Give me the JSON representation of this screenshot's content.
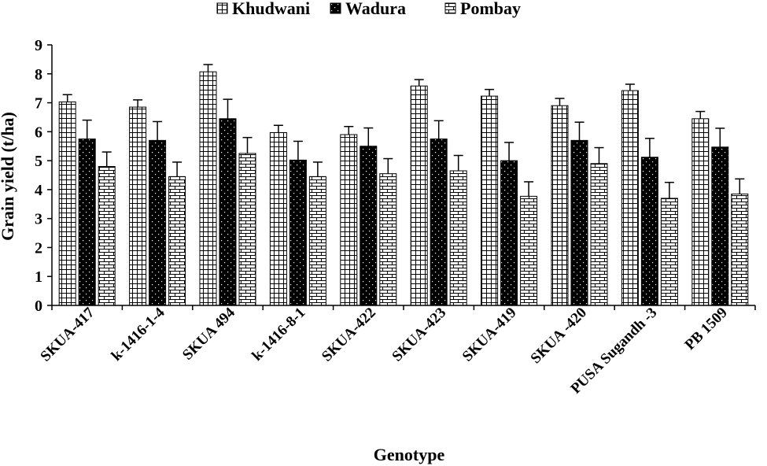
{
  "chart_data": {
    "type": "bar",
    "xlabel": "Genotype",
    "ylabel": "Grain yield (t/ha)",
    "ylim": [
      0,
      9
    ],
    "yticks": [
      0,
      1,
      2,
      3,
      4,
      5,
      6,
      7,
      8,
      9
    ],
    "categories": [
      "SKUA-417",
      "k-1416-1-4",
      "SKUA 494",
      "k-1416-8-1",
      "SKUA-422",
      "SKUA-423",
      "SKUA-419",
      "SKUA -420",
      "PUSA Sugandh -3",
      "PB 1509"
    ],
    "series": [
      {
        "name": "Khudwani",
        "pattern": "grid",
        "values": [
          7.03,
          6.85,
          8.07,
          5.97,
          5.9,
          7.58,
          7.23,
          6.9,
          7.42,
          6.45
        ],
        "errors": [
          0.25,
          0.25,
          0.25,
          0.25,
          0.28,
          0.22,
          0.23,
          0.25,
          0.22,
          0.25
        ]
      },
      {
        "name": "Wadura",
        "pattern": "dots",
        "values": [
          5.75,
          5.7,
          6.45,
          5.02,
          5.5,
          5.75,
          5.0,
          5.7,
          5.12,
          5.47
        ],
        "errors": [
          0.65,
          0.65,
          0.67,
          0.65,
          0.63,
          0.63,
          0.63,
          0.63,
          0.65,
          0.65
        ]
      },
      {
        "name": "Pombay",
        "pattern": "brick",
        "values": [
          4.8,
          4.45,
          5.25,
          4.45,
          4.55,
          4.65,
          3.77,
          4.9,
          3.7,
          3.85
        ],
        "errors": [
          0.5,
          0.5,
          0.55,
          0.5,
          0.52,
          0.53,
          0.5,
          0.55,
          0.55,
          0.52
        ]
      }
    ],
    "legend": "top-center",
    "grid": false,
    "error_bars": true
  }
}
